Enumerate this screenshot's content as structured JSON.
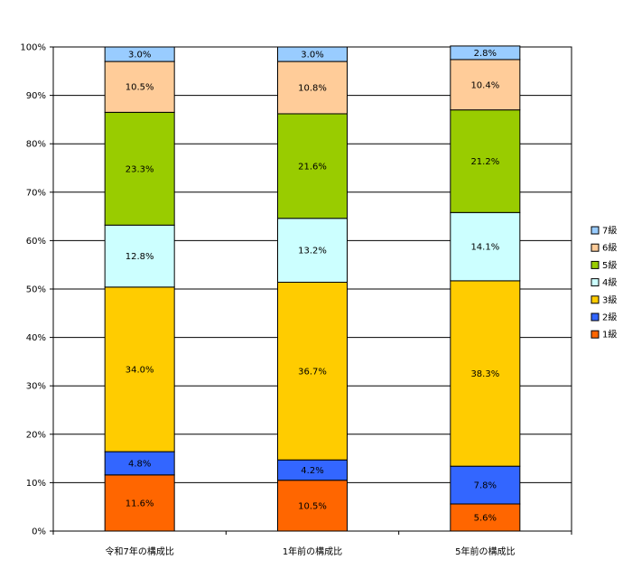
{
  "chart_data": {
    "type": "stacked-bar-100",
    "categories": [
      "令和7年の構成比",
      "1年前の構成比",
      "5年前の構成比"
    ],
    "yticks": [
      "0%",
      "10%",
      "20%",
      "30%",
      "40%",
      "50%",
      "60%",
      "70%",
      "80%",
      "90%",
      "100%"
    ],
    "ylim": [
      0,
      100
    ],
    "grid": true,
    "legend_position": "right",
    "series": [
      {
        "name": "1級",
        "color": "#ff6600",
        "values": [
          11.6,
          10.5,
          5.6
        ],
        "labels": [
          "11.6%",
          "10.5%",
          "5.6%"
        ]
      },
      {
        "name": "2級",
        "color": "#3366ff",
        "values": [
          4.8,
          4.2,
          7.8
        ],
        "labels": [
          "4.8%",
          "4.2%",
          "7.8%"
        ]
      },
      {
        "name": "3級",
        "color": "#ffcc00",
        "values": [
          34.0,
          36.7,
          38.3
        ],
        "labels": [
          "34.0%",
          "36.7%",
          "38.3%"
        ]
      },
      {
        "name": "4級",
        "color": "#ccffff",
        "values": [
          12.8,
          13.2,
          14.1
        ],
        "labels": [
          "12.8%",
          "13.2%",
          "14.1%"
        ]
      },
      {
        "name": "5級",
        "color": "#99cc00",
        "values": [
          23.3,
          21.6,
          21.2
        ],
        "labels": [
          "23.3%",
          "21.6%",
          "21.2%"
        ]
      },
      {
        "name": "6級",
        "color": "#ffcc99",
        "values": [
          10.5,
          10.8,
          10.4
        ],
        "labels": [
          "10.5%",
          "10.8%",
          "10.4%"
        ]
      },
      {
        "name": "7級",
        "color": "#99ccff",
        "values": [
          3.0,
          3.0,
          2.8
        ],
        "labels": [
          "3.0%",
          "3.0%",
          "2.8%"
        ]
      }
    ]
  }
}
